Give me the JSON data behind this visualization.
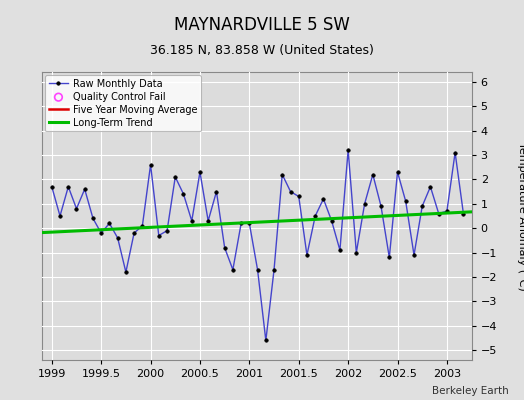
{
  "title": "MAYNARDVILLE 5 SW",
  "subtitle": "36.185 N, 83.858 W (United States)",
  "attribution": "Berkeley Earth",
  "ylabel": "Temperature Anomaly (°C)",
  "xlim": [
    1998.9,
    2003.25
  ],
  "ylim": [
    -5.4,
    6.4
  ],
  "yticks": [
    -5,
    -4,
    -3,
    -2,
    -1,
    0,
    1,
    2,
    3,
    4,
    5,
    6
  ],
  "xticks": [
    1999,
    1999.5,
    2000,
    2000.5,
    2001,
    2001.5,
    2002,
    2002.5,
    2003
  ],
  "background_color": "#e0e0e0",
  "plot_bg_color": "#dcdcdc",
  "raw_x": [
    1999.0,
    1999.083,
    1999.167,
    1999.25,
    1999.333,
    1999.417,
    1999.5,
    1999.583,
    1999.667,
    1999.75,
    1999.833,
    1999.917,
    2000.0,
    2000.083,
    2000.167,
    2000.25,
    2000.333,
    2000.417,
    2000.5,
    2000.583,
    2000.667,
    2000.75,
    2000.833,
    2000.917,
    2001.0,
    2001.083,
    2001.167,
    2001.25,
    2001.333,
    2001.417,
    2001.5,
    2001.583,
    2001.667,
    2001.75,
    2001.833,
    2001.917,
    2002.0,
    2002.083,
    2002.167,
    2002.25,
    2002.333,
    2002.417,
    2002.5,
    2002.583,
    2002.667,
    2002.75,
    2002.833,
    2002.917,
    2003.0,
    2003.083,
    2003.167
  ],
  "raw_y": [
    1.7,
    0.5,
    1.7,
    0.8,
    1.6,
    0.4,
    -0.2,
    0.2,
    -0.4,
    -1.8,
    -0.2,
    0.1,
    2.6,
    -0.3,
    -0.1,
    2.1,
    1.4,
    0.3,
    2.3,
    0.3,
    1.5,
    -0.8,
    -1.7,
    0.2,
    0.2,
    -1.7,
    -4.6,
    -1.7,
    2.2,
    1.5,
    1.3,
    -1.1,
    0.5,
    1.2,
    0.3,
    -0.9,
    3.2,
    -1.0,
    1.0,
    2.2,
    0.9,
    -1.2,
    2.3,
    1.1,
    -1.1,
    0.9,
    1.7,
    0.6,
    0.7,
    3.1,
    0.6
  ],
  "trend_x": [
    1998.9,
    2003.25
  ],
  "trend_y": [
    -0.18,
    0.67
  ],
  "raw_color": "#4444cc",
  "raw_marker_color": "#000000",
  "trend_color": "#00bb00",
  "moving_avg_color": "#dd0000",
  "qc_color": "#ff44ff",
  "legend_loc": "upper left",
  "title_fontsize": 12,
  "subtitle_fontsize": 9,
  "tick_fontsize": 8,
  "ylabel_fontsize": 8
}
